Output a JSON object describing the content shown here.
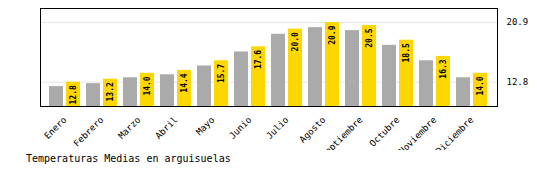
{
  "chart_data": {
    "type": "bar",
    "title": "Temperaturas Medias en arguisuelas",
    "categories": [
      "Enero",
      "Febrero",
      "Marzo",
      "Abril",
      "Mayo",
      "Junio",
      "Julio",
      "Agosto",
      "Septiembre",
      "Octubre",
      "Noviembre",
      "Diciembre"
    ],
    "series": [
      {
        "color": "#AAAAAA",
        "values": [
          12.2,
          12.6,
          13.4,
          13.8,
          15.0,
          16.9,
          19.3,
          20.2,
          19.8,
          17.8,
          15.7,
          13.4
        ]
      },
      {
        "color": "#FFD700",
        "values": [
          12.8,
          13.2,
          14.0,
          14.4,
          15.7,
          17.6,
          20.0,
          20.9,
          20.5,
          18.5,
          16.3,
          14.0
        ],
        "value_labels": [
          "12.8",
          "13.2",
          "14.0",
          "14.4",
          "15.7",
          "17.6",
          "20.0",
          "20.9",
          "20.5",
          "18.5",
          "16.3",
          "14.0"
        ],
        "data_labels": true
      }
    ],
    "ylim": [
      9.5,
      22.8
    ],
    "yticks": [
      12.8,
      20.9
    ],
    "y2lim": [
      9.5,
      22.8
    ],
    "y2ticks": [
      12.8,
      20.9
    ],
    "grid": true
  }
}
